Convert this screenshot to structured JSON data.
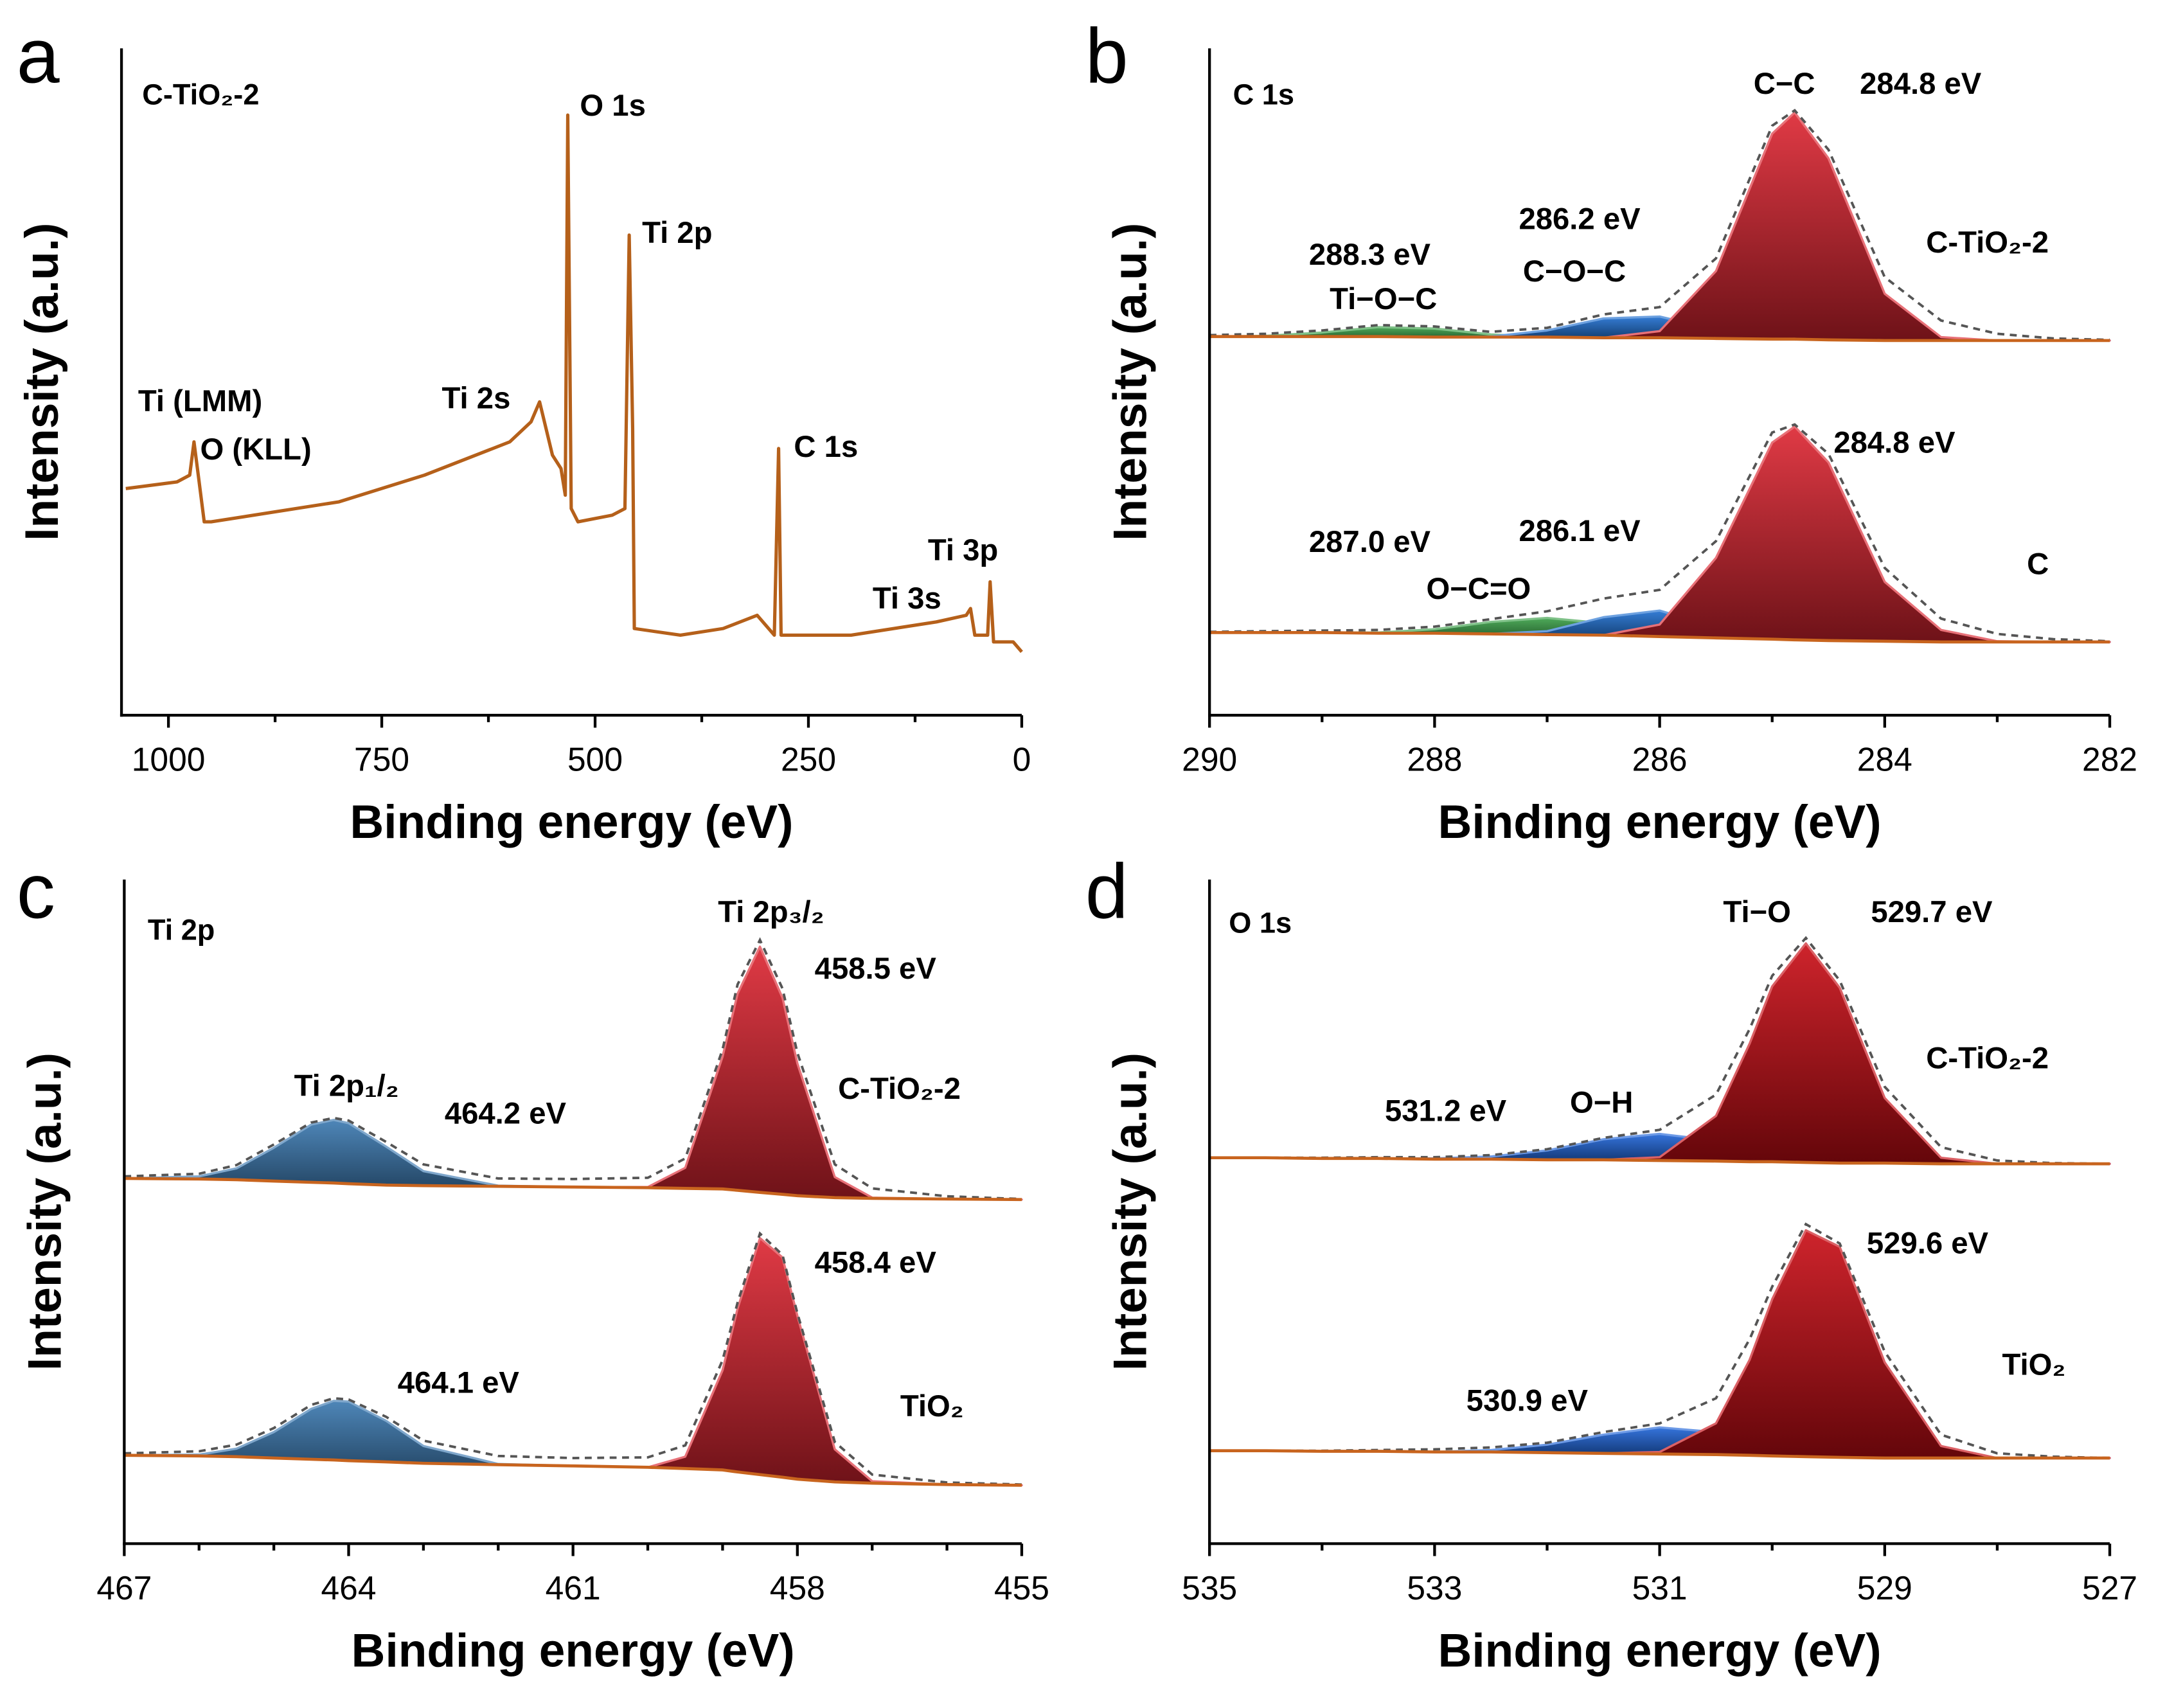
{
  "chart_data": [
    {
      "type": "line",
      "panel_label": "a",
      "inset_label": "C-TiO₂-2",
      "x_label": "Binding energy (eV)",
      "y_label": "Intensity (a.u.)",
      "xlim": [
        1055,
        0
      ],
      "xticks": [
        1000,
        750,
        500,
        250,
        0
      ],
      "xminorticks": [
        875,
        625,
        375,
        125
      ],
      "ylim": [
        0,
        100
      ],
      "color": "#b5601a",
      "x": [
        1050,
        990,
        975,
        970,
        965,
        958,
        950,
        900,
        800,
        700,
        600,
        575,
        565,
        550,
        540,
        535,
        532,
        528,
        520,
        480,
        465,
        460,
        456,
        454,
        400,
        350,
        310,
        290,
        285,
        282,
        200,
        100,
        65,
        60,
        55,
        40,
        37,
        33,
        10,
        0
      ],
      "values": [
        34,
        35,
        36,
        41,
        36,
        29,
        29,
        30,
        32,
        36,
        41,
        44,
        47,
        39,
        37,
        33,
        90,
        31,
        29,
        30,
        31,
        72,
        43,
        13,
        12,
        13,
        15,
        12,
        40,
        12,
        12,
        14,
        15,
        16,
        12,
        12,
        20,
        11,
        11,
        9.5
      ],
      "annotations": [
        "O 1s",
        "Ti 2p",
        "Ti 2s",
        "Ti (LMM)",
        "O (KLL)",
        "C 1s",
        "Ti 3p",
        "Ti 3s"
      ]
    },
    {
      "type": "xps-fit",
      "panel_label": "b",
      "inset_label": "C 1s",
      "x_label": "Binding energy (eV)",
      "y_label": "Intensity (a.u.)",
      "xlim": [
        290,
        282
      ],
      "xticks": [
        290,
        288,
        286,
        284,
        282
      ],
      "xminorticks": [
        289,
        287,
        285,
        283
      ],
      "ylim": [
        0,
        100
      ],
      "background_color": "#c8641e",
      "envelope_color": "#555555",
      "x": [
        290,
        289.5,
        289,
        288.5,
        288,
        287.5,
        287,
        286.5,
        286,
        285.5,
        285,
        284.8,
        284.5,
        284,
        283.5,
        283,
        282.5,
        282
      ],
      "spectra": [
        {
          "background": [
            56.8,
            56.8,
            56.8,
            56.8,
            56.7,
            56.7,
            56.7,
            56.6,
            56.6,
            56.5,
            56.4,
            56.4,
            56.3,
            56.2,
            56.2,
            56.2,
            56.2,
            56.2
          ],
          "envelope": [
            0.2,
            0.4,
            0.9,
            1.7,
            1.6,
            0.8,
            1.4,
            3.5,
            4.6,
            12.0,
            32,
            34.3,
            28.5,
            9.5,
            3.0,
            1.0,
            0.3,
            0.1
          ],
          "components": [
            {
              "color": "#3aa048",
              "values": [
                0,
                0.1,
                0.6,
                1.4,
                1.3,
                0.4,
                0,
                0,
                0,
                0,
                0,
                0,
                0,
                0,
                0,
                0,
                0,
                0
              ]
            },
            {
              "color": "#1e6fd0",
              "values": [
                0,
                0,
                0,
                0,
                0,
                0.1,
                1.0,
                2.9,
                3.2,
                1.3,
                0.2,
                0.1,
                0,
                0,
                0,
                0,
                0,
                0
              ]
            },
            {
              "color": "#dc2430",
              "values": [
                0,
                0,
                0,
                0,
                0,
                0,
                0,
                0,
                1.0,
                10.1,
                30.8,
                34,
                27.2,
                7.0,
                0.5,
                0,
                0,
                0
              ]
            }
          ]
        },
        {
          "background": [
            12.4,
            12.4,
            12.4,
            12.3,
            12.3,
            12.2,
            12.1,
            12.0,
            11.8,
            11.6,
            11.4,
            11.3,
            11.2,
            11.1,
            11.0,
            11.0,
            11.0,
            11.0
          ],
          "envelope": [
            0.1,
            0.2,
            0.3,
            0.5,
            1.0,
            2.2,
            3.5,
            5.5,
            7.0,
            14.5,
            31,
            32.3,
            28,
            11,
            3.5,
            1.2,
            0.4,
            0.1
          ],
          "components": [
            {
              "color": "#3aa048",
              "values": [
                0,
                0,
                0,
                0.1,
                0.6,
                1.8,
                2.5,
                1.8,
                0.6,
                0.1,
                0,
                0,
                0,
                0,
                0,
                0,
                0,
                0
              ]
            },
            {
              "color": "#1e6fd0",
              "values": [
                0,
                0,
                0,
                0,
                0,
                0,
                0.5,
                2.7,
                3.9,
                1.6,
                0.2,
                0.1,
                0,
                0,
                0,
                0,
                0,
                0
              ]
            },
            {
              "color": "#dc2430",
              "values": [
                0,
                0,
                0,
                0,
                0,
                0,
                0,
                0,
                1.8,
                12.0,
                29.5,
                32,
                26.7,
                8.9,
                1.8,
                0.1,
                0,
                0
              ]
            }
          ]
        }
      ],
      "annotations": [
        "C−C",
        "284.8 eV",
        "C-TiO₂-2",
        "286.2 eV",
        "C−O−C",
        "288.3 eV",
        "Ti−O−C",
        "284.8 eV",
        "C",
        "287.0 eV",
        "286.1 eV",
        "O−C=O"
      ]
    },
    {
      "type": "xps-fit",
      "panel_label": "c",
      "inset_label": "Ti 2p",
      "x_label": "Binding energy (eV)",
      "y_label": "Intensity (a.u.)",
      "xlim": [
        467,
        455
      ],
      "xticks": [
        467,
        464,
        461,
        458,
        455
      ],
      "xminorticks": [
        466,
        465,
        463,
        462,
        460,
        459,
        457,
        456
      ],
      "ylim": [
        0,
        100
      ],
      "background_color": "#c8641e",
      "envelope_color": "#555555",
      "x": [
        467,
        466,
        465.5,
        465,
        464.5,
        464.2,
        464,
        463.5,
        463,
        462,
        461,
        460,
        459.5,
        459,
        458.8,
        458.5,
        458.2,
        458,
        457.5,
        457,
        456,
        455
      ],
      "spectra": [
        {
          "background": [
            55,
            54.9,
            54.8,
            54.6,
            54.4,
            54.3,
            54.2,
            54.0,
            53.9,
            53.8,
            53.7,
            53.6,
            53.5,
            53.4,
            53.2,
            52.9,
            52.6,
            52.4,
            52.1,
            52.0,
            51.9,
            51.8
          ],
          "envelope": [
            0.3,
            0.8,
            2.2,
            5.5,
            9.0,
            9.8,
            9.5,
            6.5,
            3.2,
            1.2,
            1.2,
            1.5,
            4.5,
            21,
            31,
            38,
            31,
            21.5,
            5.0,
            1.5,
            0.4,
            0.1
          ],
          "components": [
            {
              "color": "#3a78b0",
              "values": [
                0,
                0.4,
                1.7,
                5.0,
                8.7,
                9.5,
                9.1,
                5.8,
                2.2,
                0.1,
                0,
                0,
                0,
                0,
                0,
                0,
                0,
                0,
                0,
                0,
                0,
                0
              ]
            },
            {
              "color": "#dc2430",
              "values": [
                0,
                0,
                0,
                0,
                0,
                0,
                0,
                0,
                0,
                0,
                0,
                0.1,
                3.1,
                19.9,
                29.6,
                37,
                29.6,
                19.9,
                3.1,
                0.1,
                0,
                0
              ]
            }
          ]
        },
        {
          "background": [
            13.3,
            13.2,
            13.1,
            12.9,
            12.7,
            12.6,
            12.5,
            12.3,
            12.1,
            11.9,
            11.7,
            11.5,
            11.3,
            11.1,
            10.8,
            10.4,
            10.0,
            9.7,
            9.3,
            9.1,
            8.9,
            8.8
          ],
          "envelope": [
            0.3,
            0.7,
            1.8,
            4.5,
            8.2,
            9.3,
            9.2,
            6.8,
            3.4,
            1.3,
            1.2,
            1.5,
            3.5,
            16.5,
            25.5,
            36.3,
            33.5,
            25,
            6.0,
            1.3,
            0.3,
            0.1
          ],
          "components": [
            {
              "color": "#3a78b0",
              "values": [
                0,
                0.2,
                1.2,
                3.9,
                7.6,
                8.9,
                8.9,
                6.2,
                2.6,
                0.1,
                0,
                0,
                0,
                0,
                0,
                0,
                0,
                0,
                0,
                0,
                0,
                0
              ]
            },
            {
              "color": "#dc2430",
              "values": [
                0,
                0,
                0,
                0,
                0,
                0,
                0,
                0,
                0,
                0,
                0,
                0,
                1.8,
                15.0,
                24.6,
                35.6,
                33.1,
                24.6,
                4.9,
                0.3,
                0,
                0
              ]
            }
          ]
        }
      ],
      "annotations": [
        "Ti 2p₃/₂",
        "458.5 eV",
        "C-TiO₂-2",
        "Ti 2p₁/₂",
        "464.2 eV",
        "458.4 eV",
        "464.1 eV",
        "TiO₂"
      ]
    },
    {
      "type": "xps-fit",
      "panel_label": "d",
      "inset_label": "O 1s",
      "x_label": "Binding energy (eV)",
      "y_label": "Intensity (a.u.)",
      "xlim": [
        535,
        527
      ],
      "xticks": [
        535,
        533,
        531,
        529,
        527
      ],
      "xminorticks": [
        534,
        532,
        530,
        528
      ],
      "ylim": [
        0,
        100
      ],
      "background_color": "#c8641e",
      "envelope_color": "#555555",
      "x": [
        535,
        534.5,
        534,
        533.5,
        533,
        532.5,
        532,
        531.5,
        531,
        530.5,
        530.2,
        530,
        529.7,
        529.4,
        529,
        528.5,
        528,
        527.5,
        527
      ],
      "spectra": [
        {
          "background": [
            58.1,
            58.1,
            58.0,
            58.0,
            57.9,
            57.9,
            57.8,
            57.8,
            57.7,
            57.6,
            57.5,
            57.5,
            57.4,
            57.3,
            57.3,
            57.2,
            57.2,
            57.2,
            57.2
          ],
          "envelope": [
            0,
            0,
            0.1,
            0.2,
            0.3,
            0.6,
            1.6,
            3.3,
            4.6,
            10.0,
            20,
            28,
            33.8,
            27.5,
            11.5,
            2.5,
            0.5,
            0.1,
            0
          ],
          "components": [
            {
              "color": "#1e64d8",
              "values": [
                0,
                0,
                0,
                0,
                0.1,
                0.4,
                1.4,
                3.1,
                4,
                3.1,
                2.1,
                1.4,
                0.7,
                0.3,
                0,
                0,
                0,
                0,
                0
              ]
            },
            {
              "color": "#c80c14",
              "values": [
                0,
                0,
                0,
                0,
                0,
                0,
                0,
                0,
                0.5,
                6.8,
                17.8,
                26.4,
                33,
                26.4,
                9.8,
                0.9,
                0,
                0,
                0
              ]
            }
          ]
        },
        {
          "background": [
            14.0,
            14.0,
            13.9,
            13.9,
            13.8,
            13.8,
            13.7,
            13.6,
            13.5,
            13.4,
            13.3,
            13.2,
            13.1,
            13.0,
            12.9,
            12.9,
            12.9,
            12.9,
            12.9
          ],
          "envelope": [
            0,
            0,
            0.1,
            0.2,
            0.4,
            0.7,
            1.5,
            3.2,
            4.6,
            8.5,
            17.5,
            25.5,
            35.0,
            32.2,
            16.0,
            3.5,
            0.7,
            0.2,
            0
          ],
          "components": [
            {
              "color": "#1e64d8",
              "values": [
                0,
                0,
                0,
                0,
                0,
                0.3,
                1.2,
                2.8,
                4.0,
                3.4,
                2.4,
                1.8,
                0.9,
                0.4,
                0.1,
                0,
                0,
                0,
                0
              ]
            },
            {
              "color": "#c80c14",
              "values": [
                0,
                0,
                0,
                0,
                0,
                0,
                0,
                0,
                0.3,
                4.7,
                14.4,
                23.6,
                34.1,
                31.7,
                14.4,
                1.8,
                0,
                0,
                0
              ]
            }
          ]
        }
      ],
      "annotations": [
        "Ti−O",
        "529.7 eV",
        "C-TiO₂-2",
        "531.2 eV",
        "O−H",
        "529.6 eV",
        "TiO₂",
        "530.9 eV"
      ]
    }
  ]
}
